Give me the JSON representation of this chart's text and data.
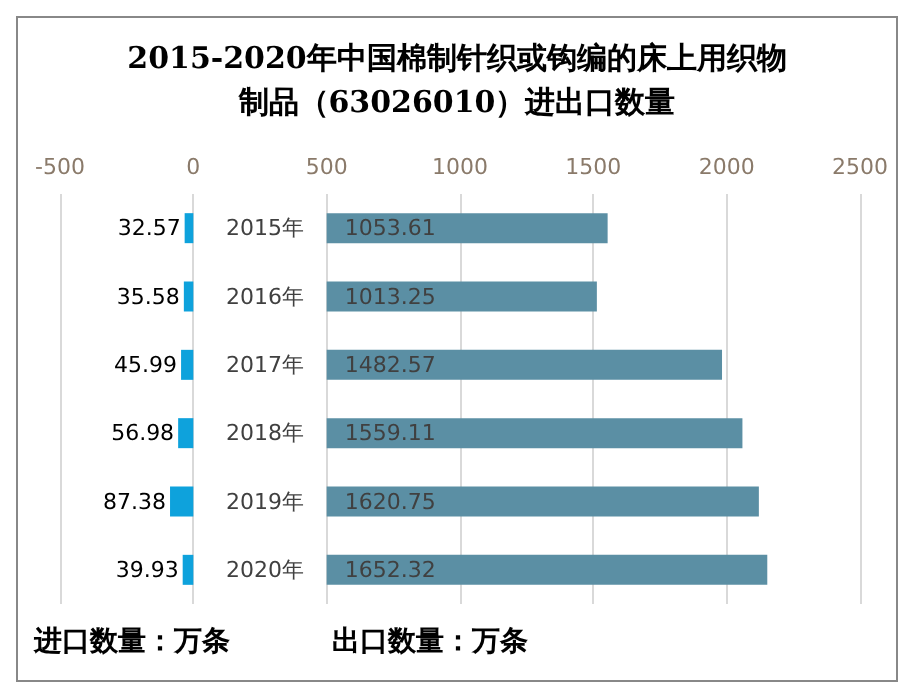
{
  "chart_data": {
    "type": "bar",
    "orientation": "horizontal",
    "title": "2015-2020年中国棉制针织或钩编的床上用织物制品（63026010）进出口数量",
    "categories": [
      "2015年",
      "2016年",
      "2017年",
      "2018年",
      "2019年",
      "2020年"
    ],
    "series": [
      {
        "color": "#0ea2dc",
        "values": [
          32.57,
          35.58,
          45.99,
          56.98,
          87.38,
          39.93
        ],
        "base": [
          -32.57,
          -35.58,
          -45.99,
          -56.98,
          -87.38,
          -39.93
        ]
      },
      {
        "color": "#5b8fa4",
        "values": [
          1053.61,
          1013.25,
          1482.57,
          1559.11,
          1620.75,
          1652.32
        ],
        "base": [
          500,
          500,
          500,
          500,
          500,
          500
        ]
      }
    ],
    "xlim": [
      -500,
      2500
    ],
    "xticks": [
      -500,
      0,
      500,
      1000,
      1500,
      2000,
      2500
    ],
    "grid": "x",
    "data_labels": true,
    "annotations": [
      "进口数量：万条",
      "出口数量：万条"
    ]
  }
}
